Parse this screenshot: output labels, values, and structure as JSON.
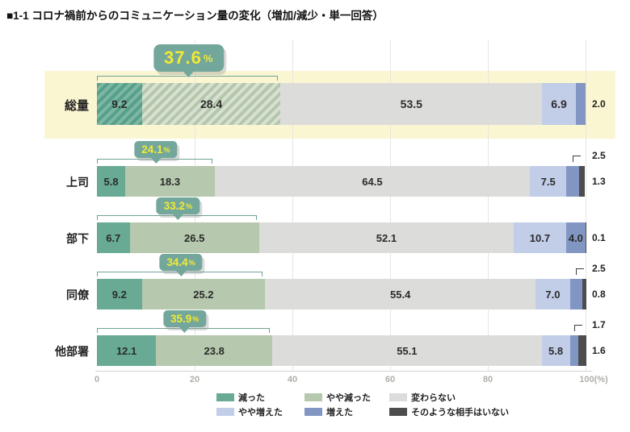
{
  "title": "■1-1 コロナ禍前からのコミュニケーション量の変化（増加/減少・単一回答）",
  "percent_suffix": "%",
  "colors": {
    "decrease": "#68aa94",
    "slight_decrease": "#b6c8ad",
    "no_change": "#dcdcda",
    "slight_increase": "#c2cde8",
    "increase": "#8296c3",
    "no_partner": "#4d4d4d",
    "highlight_band": "#fbf6d2",
    "callout_bg": "#74a79b",
    "callout_text": "#f2e935",
    "bracket": "#6fa396"
  },
  "chart_data": {
    "type": "bar",
    "orientation": "horizontal-stacked",
    "unit": "%",
    "xlim": [
      0,
      100
    ],
    "grid": true,
    "legend_position": "bottom",
    "categories": [
      "総量",
      "上司",
      "部下",
      "同僚",
      "他部署"
    ],
    "series_names": [
      "減った",
      "やや減った",
      "変わらない",
      "やや増えた",
      "増えた",
      "そのような相手はいない"
    ],
    "rows": [
      {
        "label": "総量",
        "values": [
          9.2,
          28.4,
          53.5,
          6.9,
          2.0,
          null
        ],
        "decrease_total": 37.6,
        "highlight": true
      },
      {
        "label": "上司",
        "values": [
          5.8,
          18.3,
          64.5,
          7.5,
          2.5,
          1.3
        ],
        "decrease_total": 24.1
      },
      {
        "label": "部下",
        "values": [
          6.7,
          26.5,
          52.1,
          10.7,
          4.0,
          0.1
        ],
        "decrease_total": 33.2
      },
      {
        "label": "同僚",
        "values": [
          9.2,
          25.2,
          55.4,
          7.0,
          2.5,
          0.8
        ],
        "decrease_total": 34.4
      },
      {
        "label": "他部署",
        "values": [
          12.1,
          23.8,
          55.1,
          5.8,
          1.7,
          1.6
        ],
        "decrease_total": 35.9
      }
    ],
    "x_ticks": [
      "0",
      "20",
      "40",
      "60",
      "80",
      "100(%)"
    ],
    "x_tick_values": [
      0,
      20,
      40,
      60,
      80,
      100
    ],
    "legend": [
      {
        "label": "減った",
        "color": "#68aa94"
      },
      {
        "label": "やや減った",
        "color": "#b6c8ad"
      },
      {
        "label": "変わらない",
        "color": "#dcdcda"
      },
      {
        "label": "やや増えた",
        "color": "#c2cde8"
      },
      {
        "label": "増えた",
        "color": "#8296c3"
      },
      {
        "label": "そのような相手はいない",
        "color": "#4d4d4d"
      }
    ]
  }
}
